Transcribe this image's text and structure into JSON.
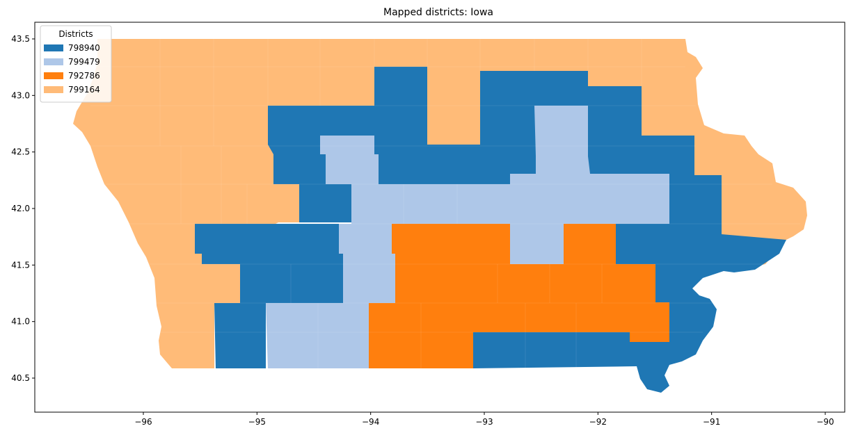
{
  "chart_data": {
    "type": "map",
    "title": "Mapped districts: Iowa",
    "xlim": [
      -97.0,
      -89.8
    ],
    "ylim": [
      40.22,
      43.65
    ],
    "x_ticks": [
      "−96",
      "−95",
      "−94",
      "−93",
      "−92",
      "−91",
      "−90"
    ],
    "x_tick_values": [
      -96,
      -95,
      -94,
      -93,
      -92,
      -91,
      -90
    ],
    "y_ticks": [
      "40.5",
      "41.0",
      "41.5",
      "42.0",
      "42.5",
      "43.0",
      "43.5"
    ],
    "y_tick_values": [
      40.5,
      41.0,
      41.5,
      42.0,
      42.5,
      43.0,
      43.5
    ],
    "legend": {
      "title": "Districts",
      "placement": "top-left",
      "entries": [
        {
          "label": "798940",
          "color": "#1f77b4"
        },
        {
          "label": "799479",
          "color": "#aec7e8"
        },
        {
          "label": "792786",
          "color": "#ff7f0e"
        },
        {
          "label": "799164",
          "color": "#ffbb78"
        }
      ]
    },
    "colors": {
      "798940": "#1f77b4",
      "799479": "#aec7e8",
      "792786": "#ff7f0e",
      "799164": "#ffbb78"
    }
  }
}
